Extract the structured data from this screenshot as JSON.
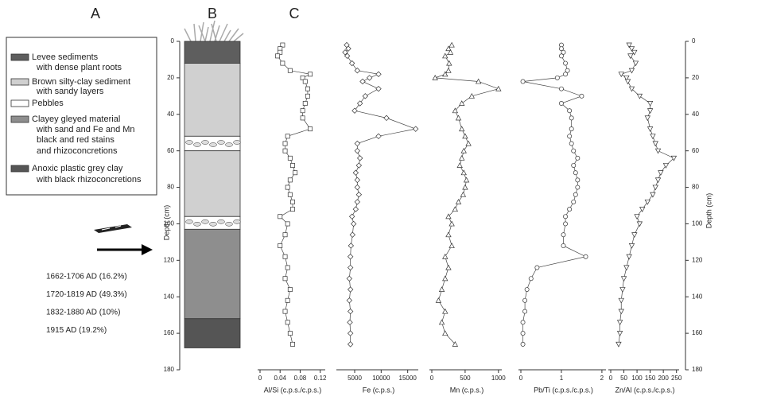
{
  "panels": [
    "A",
    "B",
    "C"
  ],
  "legend": [
    {
      "lines": [
        "Levee sediments",
        "with dense plant roots"
      ],
      "color": "#5e5e5e"
    },
    {
      "lines": [
        "Brown silty-clay sediment",
        "with sandy layers"
      ],
      "color": "#d0d0d0"
    },
    {
      "lines": [
        "Pebbles"
      ],
      "color": "#ffffff"
    },
    {
      "lines": [
        "Clayey gleyed material",
        "with sand and Fe and Mn",
        "black and red stains",
        "and rhizoconcretions"
      ],
      "color": "#8e8e8e"
    },
    {
      "lines": [
        "Anoxic plastic grey clay",
        "with black rhizoconcretions"
      ],
      "color": "#555555"
    }
  ],
  "dates": [
    "1662-1706 AD (16.2%)",
    "1720-1819 AD (49.3%)",
    "1832-1880 AD (10%)",
    "1915 AD (19.2%)"
  ],
  "column": {
    "layers": [
      {
        "top": 0,
        "bottom": 12,
        "color": "#5e5e5e"
      },
      {
        "top": 12,
        "bottom": 52,
        "color": "#d0d0d0"
      },
      {
        "top": 52,
        "bottom": 60,
        "color": "#ffffff"
      },
      {
        "top": 60,
        "bottom": 96,
        "color": "#d0d0d0"
      },
      {
        "top": 96,
        "bottom": 103,
        "color": "#ffffff"
      },
      {
        "top": 103,
        "bottom": 152,
        "color": "#8e8e8e"
      },
      {
        "top": 152,
        "bottom": 168,
        "color": "#555555"
      }
    ]
  },
  "depth_axis": {
    "label": "Depth (cm)",
    "lim": [
      0,
      180
    ],
    "ticks": [
      0,
      20,
      40,
      60,
      80,
      100,
      120,
      140,
      160,
      180
    ]
  },
  "chart_data": [
    {
      "type": "line",
      "x_label": "Al/Si (c.p.s./c.p.s.)",
      "marker": "square",
      "xlim": [
        0,
        0.13
      ],
      "xticks": [
        0,
        0.04,
        0.08,
        0.12
      ],
      "y": [
        2,
        4,
        6,
        8,
        12,
        16,
        18,
        20,
        22,
        26,
        30,
        34,
        38,
        42,
        48,
        52,
        56,
        60,
        64,
        68,
        72,
        76,
        80,
        84,
        88,
        92,
        96,
        100,
        106,
        112,
        118,
        124,
        130,
        136,
        142,
        148,
        154,
        160,
        166
      ],
      "values": [
        0.045,
        0.04,
        0.04,
        0.035,
        0.045,
        0.06,
        0.1,
        0.085,
        0.09,
        0.095,
        0.095,
        0.09,
        0.085,
        0.085,
        0.1,
        0.055,
        0.05,
        0.05,
        0.06,
        0.065,
        0.07,
        0.06,
        0.055,
        0.06,
        0.065,
        0.065,
        0.04,
        0.055,
        0.05,
        0.04,
        0.05,
        0.055,
        0.05,
        0.06,
        0.055,
        0.05,
        0.055,
        0.06,
        0.065
      ]
    },
    {
      "type": "line",
      "x_label": "Fe (c.p.s.)",
      "marker": "diamond",
      "xlim": [
        2000,
        17000
      ],
      "xticks": [
        5000,
        10000,
        15000
      ],
      "y": [
        2,
        4,
        6,
        8,
        12,
        16,
        18,
        20,
        22,
        26,
        30,
        34,
        38,
        42,
        48,
        52,
        56,
        60,
        64,
        68,
        72,
        76,
        80,
        84,
        88,
        92,
        96,
        100,
        106,
        112,
        118,
        124,
        130,
        136,
        142,
        148,
        154,
        160,
        166
      ],
      "values": [
        3500,
        3800,
        3200,
        3600,
        4500,
        5500,
        9500,
        7800,
        6500,
        9500,
        7000,
        6000,
        5000,
        11000,
        16500,
        9500,
        5500,
        5500,
        6000,
        5800,
        5200,
        5500,
        5500,
        5800,
        5500,
        5200,
        4500,
        4800,
        4600,
        4300,
        4200,
        4200,
        4000,
        4200,
        4000,
        4200,
        4100,
        4200,
        4200
      ]
    },
    {
      "type": "line",
      "x_label": "Mn (c.p.s.)",
      "marker": "triangle-up",
      "xlim": [
        0,
        1050
      ],
      "xticks": [
        0,
        500,
        1000
      ],
      "y": [
        2,
        4,
        6,
        8,
        12,
        16,
        18,
        20,
        22,
        26,
        30,
        34,
        38,
        42,
        48,
        52,
        56,
        60,
        64,
        68,
        72,
        76,
        80,
        84,
        88,
        92,
        96,
        100,
        106,
        112,
        118,
        124,
        130,
        136,
        142,
        148,
        154,
        160,
        166
      ],
      "values": [
        300,
        250,
        280,
        200,
        260,
        250,
        200,
        50,
        700,
        1000,
        600,
        450,
        350,
        400,
        450,
        500,
        550,
        480,
        450,
        420,
        480,
        520,
        500,
        470,
        400,
        350,
        250,
        300,
        250,
        300,
        200,
        250,
        200,
        150,
        100,
        200,
        150,
        200,
        350
      ]
    },
    {
      "type": "line",
      "x_label": "Pb/Ti (c.p.s./c.p.s.)",
      "marker": "circle",
      "xlim": [
        0,
        2.1
      ],
      "xticks": [
        0,
        1,
        2
      ],
      "y": [
        2,
        4,
        6,
        8,
        12,
        16,
        18,
        20,
        22,
        26,
        30,
        34,
        38,
        42,
        48,
        52,
        56,
        60,
        64,
        68,
        72,
        76,
        80,
        84,
        88,
        92,
        96,
        100,
        106,
        112,
        118,
        124,
        130,
        136,
        142,
        148,
        154,
        160,
        166
      ],
      "values": [
        1.0,
        1.0,
        1.05,
        1.0,
        1.1,
        1.15,
        1.1,
        0.9,
        0.05,
        1.0,
        1.5,
        1.0,
        1.2,
        1.25,
        1.25,
        1.2,
        1.25,
        1.3,
        1.4,
        1.3,
        1.35,
        1.4,
        1.4,
        1.35,
        1.3,
        1.2,
        1.1,
        1.1,
        1.05,
        1.05,
        1.6,
        0.4,
        0.25,
        0.15,
        0.1,
        0.1,
        0.05,
        0.05,
        0.05
      ]
    },
    {
      "type": "line",
      "x_label": "Zn/Al (c.p.s./c.p.s.)",
      "marker": "triangle-down",
      "xlim": [
        0,
        260
      ],
      "xticks": [
        0,
        50,
        100,
        150,
        200,
        250
      ],
      "y": [
        2,
        4,
        6,
        8,
        12,
        16,
        18,
        20,
        22,
        26,
        30,
        34,
        38,
        42,
        48,
        52,
        56,
        60,
        64,
        68,
        72,
        76,
        80,
        84,
        88,
        92,
        96,
        100,
        106,
        112,
        118,
        124,
        130,
        136,
        142,
        148,
        154,
        160,
        166
      ],
      "values": [
        70,
        80,
        90,
        75,
        95,
        80,
        40,
        60,
        65,
        80,
        110,
        150,
        150,
        140,
        150,
        160,
        170,
        180,
        240,
        210,
        190,
        180,
        170,
        160,
        140,
        120,
        100,
        110,
        90,
        80,
        70,
        60,
        50,
        45,
        40,
        40,
        35,
        35,
        30
      ]
    }
  ]
}
